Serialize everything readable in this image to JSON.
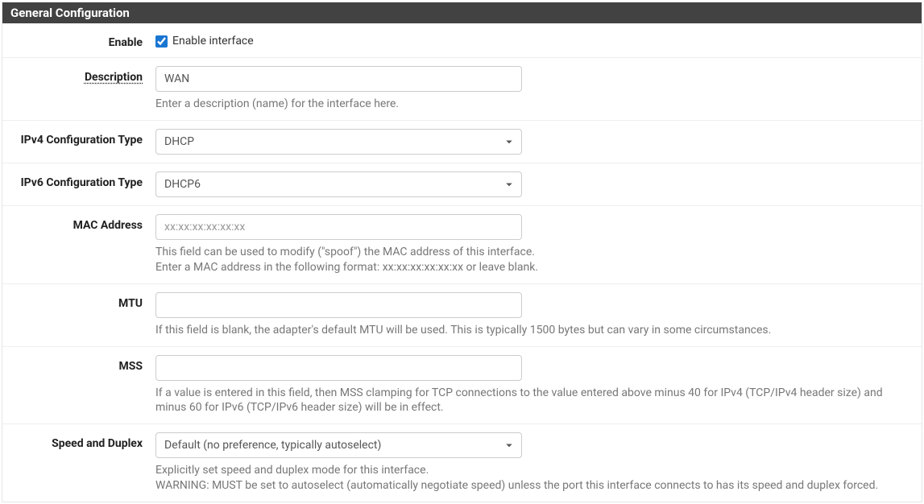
{
  "panel": {
    "title": "General Configuration"
  },
  "enable": {
    "label": "Enable",
    "checkbox_label": "Enable interface",
    "checked": true
  },
  "description": {
    "label": "Description",
    "value": "WAN",
    "help": "Enter a description (name) for the interface here."
  },
  "ipv4_config": {
    "label": "IPv4 Configuration Type",
    "value": "DHCP"
  },
  "ipv6_config": {
    "label": "IPv6 Configuration Type",
    "value": "DHCP6"
  },
  "mac": {
    "label": "MAC Address",
    "placeholder": "xx:xx:xx:xx:xx:xx",
    "value": "",
    "help": "This field can be used to modify (\"spoof\") the MAC address of this interface.\nEnter a MAC address in the following format: xx:xx:xx:xx:xx:xx or leave blank."
  },
  "mtu": {
    "label": "MTU",
    "value": "",
    "help": "If this field is blank, the adapter's default MTU will be used. This is typically 1500 bytes but can vary in some circumstances."
  },
  "mss": {
    "label": "MSS",
    "value": "",
    "help": "If a value is entered in this field, then MSS clamping for TCP connections to the value entered above minus 40 for IPv4 (TCP/IPv4 header size) and minus 60 for IPv6 (TCP/IPv6 header size) will be in effect."
  },
  "speed_duplex": {
    "label": "Speed and Duplex",
    "value": "Default (no preference, typically autoselect)",
    "help": "Explicitly set speed and duplex mode for this interface.\nWARNING: MUST be set to autoselect (automatically negotiate speed) unless the port this interface connects to has its speed and duplex forced."
  }
}
